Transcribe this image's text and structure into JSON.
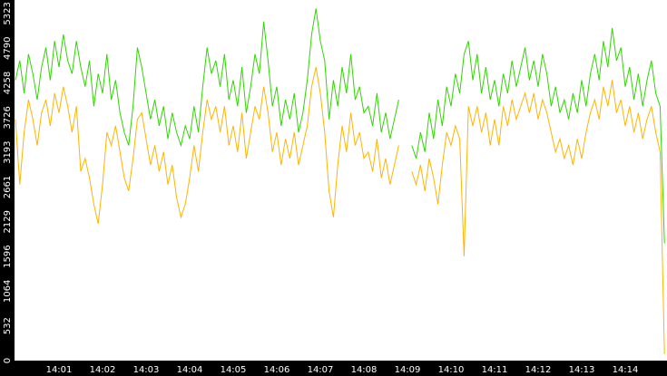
{
  "chart_data": {
    "type": "line",
    "categories": [
      null,
      null,
      null,
      null,
      null,
      null,
      null,
      null,
      null,
      null,
      "14:01",
      null,
      null,
      null,
      null,
      null,
      null,
      null,
      null,
      null,
      "14:02",
      null,
      null,
      null,
      null,
      null,
      null,
      null,
      null,
      null,
      "14:03",
      null,
      null,
      null,
      null,
      null,
      null,
      null,
      null,
      null,
      "14:04",
      null,
      null,
      null,
      null,
      null,
      null,
      null,
      null,
      null,
      "14:05",
      null,
      null,
      null,
      null,
      null,
      null,
      null,
      null,
      null,
      "14:06",
      null,
      null,
      null,
      null,
      null,
      null,
      null,
      null,
      null,
      "14:07",
      null,
      null,
      null,
      null,
      null,
      null,
      null,
      null,
      null,
      "14:08",
      null,
      null,
      null,
      null,
      null,
      null,
      null,
      null,
      null,
      "14:09",
      null,
      null,
      null,
      null,
      null,
      null,
      null,
      null,
      null,
      "14:10",
      null,
      null,
      null,
      null,
      null,
      null,
      null,
      null,
      null,
      "14:11",
      null,
      null,
      null,
      null,
      null,
      null,
      null,
      null,
      null,
      "14:12",
      null,
      null,
      null,
      null,
      null,
      null,
      null,
      null,
      null,
      "14:13",
      null,
      null,
      null,
      null,
      null,
      null,
      null,
      null,
      null,
      "14:14",
      null,
      null,
      null,
      null,
      null,
      null,
      null,
      null,
      null
    ],
    "series": [
      {
        "color": "#2fd600",
        "values": [
          4300,
          4600,
          4100,
          4700,
          4400,
          4000,
          4500,
          4800,
          4300,
          4900,
          4500,
          5000,
          4600,
          4400,
          4900,
          4500,
          4200,
          4600,
          3900,
          4400,
          4100,
          4700,
          4000,
          4300,
          3800,
          3500,
          3300,
          3900,
          4800,
          4500,
          4100,
          3700,
          4000,
          3600,
          3900,
          3400,
          3800,
          3500,
          3300,
          3600,
          3400,
          3900,
          3500,
          4200,
          4800,
          4400,
          4600,
          4200,
          4700,
          4000,
          4300,
          3900,
          4500,
          3800,
          4200,
          4700,
          4400,
          5200,
          4600,
          3900,
          4200,
          3600,
          4000,
          3700,
          4100,
          3500,
          3800,
          4300,
          5000,
          5400,
          4900,
          4600,
          3700,
          4300,
          3900,
          4500,
          4100,
          4700,
          4000,
          4200,
          3800,
          3900,
          3600,
          4100,
          3500,
          3800,
          3400,
          3700,
          4000,
          null,
          null,
          3300,
          3100,
          3500,
          3200,
          3800,
          3400,
          4000,
          3600,
          4200,
          3900,
          4400,
          4100,
          4700,
          4900,
          4300,
          4700,
          4100,
          4500,
          4000,
          4300,
          3900,
          4400,
          4100,
          4600,
          4200,
          4500,
          4800,
          4300,
          4600,
          4200,
          4700,
          4400,
          3900,
          4200,
          3800,
          4000,
          3700,
          4100,
          3800,
          4300,
          3900,
          4400,
          4700,
          4300,
          4900,
          4500,
          5100,
          4600,
          4800,
          4200,
          4500,
          4000,
          4400,
          3900,
          4300,
          4600,
          4100,
          3900,
          1800
        ]
      },
      {
        "color": "#ffb400",
        "values": [
          3700,
          2700,
          3500,
          4000,
          3700,
          3300,
          3800,
          4000,
          3600,
          4100,
          3800,
          4200,
          3900,
          3500,
          3900,
          2900,
          3100,
          2800,
          2400,
          2100,
          2700,
          3500,
          3300,
          3600,
          3200,
          2800,
          2600,
          3100,
          3700,
          3800,
          3400,
          3000,
          3300,
          2900,
          3200,
          2700,
          3000,
          2500,
          2200,
          2400,
          2800,
          3300,
          2900,
          3500,
          4000,
          3700,
          3900,
          3500,
          3900,
          3300,
          3600,
          3200,
          3800,
          3100,
          3500,
          3900,
          3700,
          4200,
          3800,
          3200,
          3500,
          3000,
          3400,
          3100,
          3500,
          3000,
          3300,
          3600,
          4200,
          4500,
          4100,
          3500,
          2600,
          2200,
          3000,
          3600,
          3200,
          3800,
          3300,
          3500,
          3100,
          3200,
          2900,
          3400,
          2800,
          3100,
          2700,
          3000,
          3300,
          null,
          null,
          2900,
          2700,
          3000,
          2600,
          3100,
          2800,
          2400,
          3000,
          3500,
          3300,
          3600,
          3400,
          1600,
          3900,
          3600,
          3900,
          3500,
          3800,
          3300,
          3700,
          3300,
          3900,
          3600,
          4000,
          3700,
          3900,
          4100,
          3800,
          4100,
          3700,
          4000,
          3800,
          3500,
          3200,
          3400,
          3100,
          3300,
          3000,
          3400,
          3100,
          3500,
          3800,
          4000,
          3700,
          4200,
          3900,
          4300,
          3800,
          4000,
          3600,
          3900,
          3500,
          3800,
          3400,
          3700,
          3900,
          3500,
          3200,
          100
        ]
      }
    ],
    "ylim": [
      0,
      5530
    ],
    "yticks": [
      0,
      532,
      1064,
      1596,
      2129,
      2661,
      3193,
      3726,
      4258,
      4790,
      5323
    ]
  }
}
